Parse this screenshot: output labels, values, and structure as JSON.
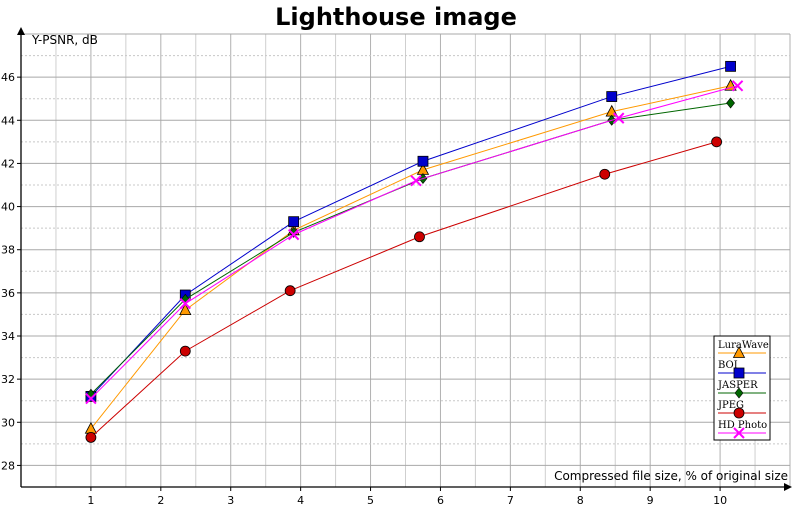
{
  "chart_data": {
    "type": "line",
    "title": "Lighthouse image",
    "xlabel": "Compressed file size, % of original size",
    "ylabel": "Y-PSNR, dB",
    "xlim": [
      0,
      11
    ],
    "ylim": [
      27,
      48
    ],
    "x_ticks": [
      1,
      2,
      3,
      4,
      5,
      6,
      7,
      8,
      9,
      10
    ],
    "y_ticks": [
      28,
      30,
      32,
      34,
      36,
      38,
      40,
      42,
      44,
      46
    ],
    "grid": true,
    "legend_position": "bottom-right",
    "series": [
      {
        "name": "LuraWave",
        "color": "#ff9900",
        "marker": "triangle",
        "x": [
          1.0,
          2.35,
          3.9,
          5.75,
          8.45,
          10.15
        ],
        "y": [
          29.7,
          35.2,
          38.9,
          41.7,
          44.4,
          45.6
        ]
      },
      {
        "name": "BOI",
        "color": "#0000cc",
        "marker": "square",
        "x": [
          1.0,
          2.35,
          3.9,
          5.75,
          8.45,
          10.15
        ],
        "y": [
          31.2,
          35.9,
          39.3,
          42.1,
          45.1,
          46.5
        ]
      },
      {
        "name": "JASPER",
        "color": "#006600",
        "marker": "diamond",
        "x": [
          1.0,
          2.35,
          3.9,
          5.75,
          8.45,
          10.15
        ],
        "y": [
          31.3,
          35.7,
          38.8,
          41.3,
          44.0,
          44.8
        ]
      },
      {
        "name": "JPEG",
        "color": "#cc0000",
        "marker": "circle",
        "x": [
          1.0,
          2.35,
          3.85,
          5.7,
          8.35,
          9.95
        ],
        "y": [
          29.3,
          33.3,
          36.1,
          38.6,
          41.5,
          43.0
        ]
      },
      {
        "name": "HD Photo",
        "color": "#ff00ff",
        "marker": "cross",
        "x": [
          1.0,
          2.35,
          3.9,
          5.65,
          8.55,
          10.25
        ],
        "y": [
          31.1,
          35.5,
          38.7,
          41.2,
          44.1,
          45.6
        ]
      }
    ]
  }
}
